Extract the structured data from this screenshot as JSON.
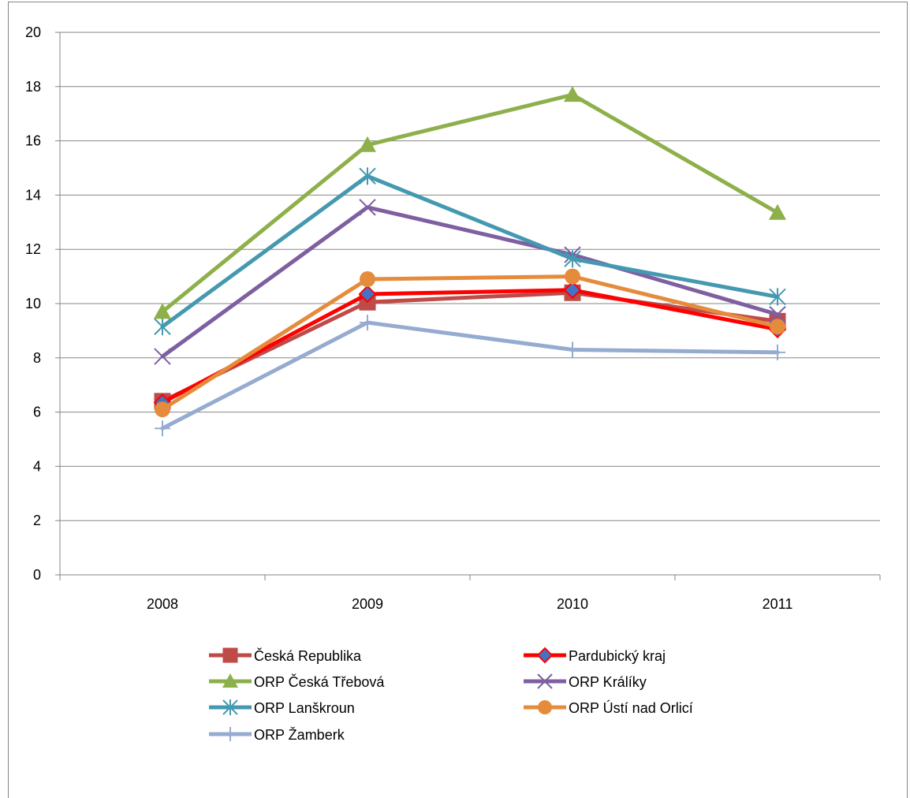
{
  "chart_data": {
    "type": "line",
    "title": "",
    "xlabel": "",
    "ylabel": "",
    "categories": [
      "2008",
      "2009",
      "2010",
      "2011"
    ],
    "ylim": [
      0,
      20
    ],
    "yticks": [
      "0",
      "2",
      "4",
      "6",
      "8",
      "10",
      "12",
      "14",
      "16",
      "18",
      "20"
    ],
    "grid": "horizontal",
    "legend_position": "bottom",
    "series": [
      {
        "name": "Česká Republika",
        "values": [
          6.4,
          10.05,
          10.4,
          9.35
        ],
        "color": "#BE4B48",
        "marker": "square"
      },
      {
        "name": "Pardubický kraj",
        "values": [
          6.35,
          10.35,
          10.5,
          9.05
        ],
        "color": "#FF0000",
        "marker": "diamond"
      },
      {
        "name": "ORP Česká Třebová",
        "values": [
          9.7,
          15.85,
          17.7,
          13.35
        ],
        "color": "#8EB04A",
        "marker": "triangle"
      },
      {
        "name": "ORP Králíky",
        "values": [
          8.05,
          13.55,
          11.8,
          9.6
        ],
        "color": "#7E5FA1",
        "marker": "x"
      },
      {
        "name": "ORP Lanškroun",
        "values": [
          9.15,
          14.7,
          11.65,
          10.25
        ],
        "color": "#4499B0",
        "marker": "star"
      },
      {
        "name": "ORP Ústí nad Orlicí",
        "values": [
          6.1,
          10.9,
          11.0,
          9.15
        ],
        "color": "#E58B3C",
        "marker": "circle"
      },
      {
        "name": "ORP Žamberk",
        "values": [
          5.4,
          9.3,
          8.3,
          8.2
        ],
        "color": "#95ABD0",
        "marker": "plus"
      }
    ]
  }
}
